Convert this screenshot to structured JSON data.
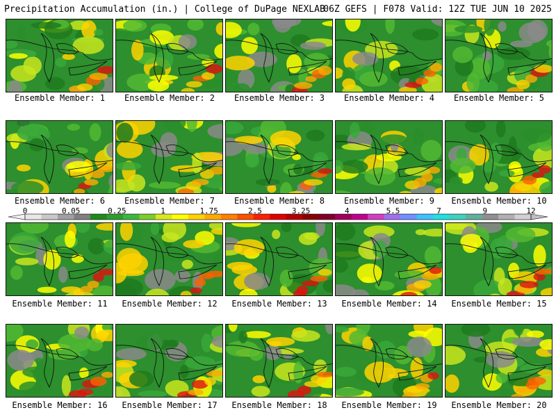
{
  "header": {
    "left": "Precipitation Accumulation (in.) | College of DuPage NEXLAB",
    "right": "06Z GEFS | F078 Valid: 12Z TUE JUN 10 2025"
  },
  "panels": [
    {
      "label": "Ensemble Member: 1"
    },
    {
      "label": "Ensemble Member: 2"
    },
    {
      "label": "Ensemble Member: 3"
    },
    {
      "label": "Ensemble Member: 4"
    },
    {
      "label": "Ensemble Member: 5"
    },
    {
      "label": "Ensemble Member: 6"
    },
    {
      "label": "Ensemble Member: 7"
    },
    {
      "label": "Ensemble Member: 8"
    },
    {
      "label": "Ensemble Member: 9"
    },
    {
      "label": "Ensemble Member: 10"
    },
    {
      "label": "Ensemble Member: 11"
    },
    {
      "label": "Ensemble Member: 12"
    },
    {
      "label": "Ensemble Member: 13"
    },
    {
      "label": "Ensemble Member: 14"
    },
    {
      "label": "Ensemble Member: 15"
    },
    {
      "label": "Ensemble Member: 16"
    },
    {
      "label": "Ensemble Member: 17"
    },
    {
      "label": "Ensemble Member: 18"
    },
    {
      "label": "Ensemble Member: 19"
    },
    {
      "label": "Ensemble Member: 20"
    }
  ],
  "colorbar": {
    "tick_labels": [
      "0",
      "0.05",
      "0.25",
      "1",
      "1.75",
      "2.5",
      "3.25",
      "4",
      "5.5",
      "7",
      "9",
      "12"
    ],
    "colors": [
      "#e8e8e8",
      "#c8c8c8",
      "#a0a0a0",
      "#808080",
      "#1f8a1f",
      "#2e9e2e",
      "#3cb83c",
      "#7ccd2a",
      "#d8e81a",
      "#ffff00",
      "#ffd200",
      "#ffaa00",
      "#ff8000",
      "#ff5000",
      "#ff2000",
      "#e00000",
      "#b40000",
      "#8a0000",
      "#80002a",
      "#a0005a",
      "#c00090",
      "#d040c0",
      "#a070f0",
      "#7090ff",
      "#40c0ff",
      "#20e0e0",
      "#40d0c0",
      "#60b0a0",
      "#909090",
      "#b0b0b0",
      "#d0d0d0"
    ]
  }
}
